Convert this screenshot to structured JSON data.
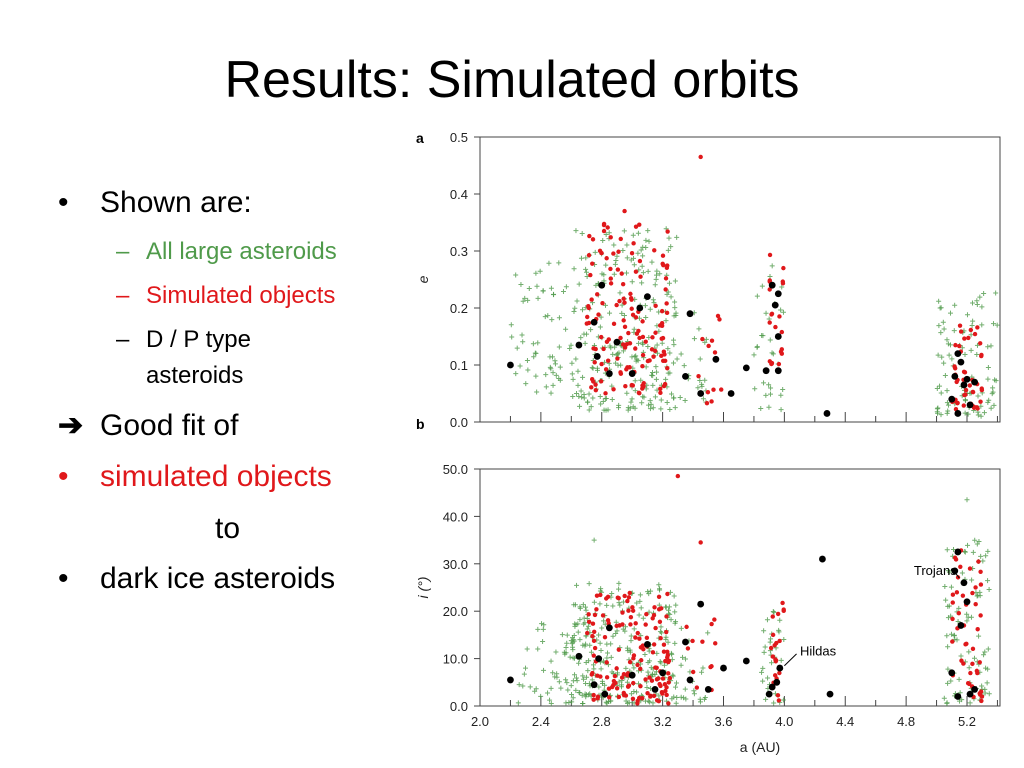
{
  "slide": {
    "title": "Results: Simulated orbits",
    "bullets": {
      "shown": "Shown are:",
      "all_large": "All large asteroids",
      "simulated": "Simulated objects",
      "dp_line1": "D / P type",
      "dp_line2": "asteroids",
      "arrow": "➔",
      "good_fit": "Good fit of",
      "sim_objects": "simulated objects",
      "to": "to",
      "dark_ice": "dark ice asteroids",
      "bullet_char": "•",
      "dash_char": "–"
    }
  },
  "colors": {
    "green": "#4f9a4a",
    "red": "#e0181b",
    "black": "#000000",
    "axis": "#444444"
  },
  "chart_data": [
    {
      "type": "scatter",
      "panel_label": "a",
      "xlabel": "",
      "ylabel": "e",
      "xlim": [
        2.0,
        5.5
      ],
      "ylim": [
        0.0,
        0.5
      ],
      "yticks": [
        "0.0",
        "0.1",
        "0.2",
        "0.3",
        "0.4",
        "0.5"
      ],
      "series": [
        {
          "marker": "cross",
          "color": "#4f9a4a",
          "clusters": [
            [
              2.2,
              2.6,
              0.05,
              0.28,
              60
            ],
            [
              2.6,
              3.3,
              0.02,
              0.34,
              260
            ],
            [
              3.3,
              3.5,
              0.03,
              0.2,
              20
            ],
            [
              3.8,
              4.0,
              0.02,
              0.3,
              30
            ],
            [
              5.0,
              5.4,
              0.01,
              0.24,
              90
            ]
          ]
        },
        {
          "marker": "dot",
          "color": "#e0181b",
          "clusters": [
            [
              2.7,
              3.25,
              0.05,
              0.36,
              140
            ],
            [
              3.4,
              3.6,
              0.03,
              0.2,
              12
            ],
            [
              3.9,
              4.0,
              0.1,
              0.31,
              22
            ],
            [
              5.1,
              5.3,
              0.02,
              0.17,
              45
            ]
          ],
          "points": [
            [
              3.45,
              0.465
            ],
            [
              2.95,
              0.37
            ]
          ]
        },
        {
          "marker": "big-dot",
          "color": "#000000",
          "points": [
            [
              2.2,
              0.1
            ],
            [
              2.65,
              0.135
            ],
            [
              2.75,
              0.175
            ],
            [
              2.77,
              0.115
            ],
            [
              2.8,
              0.24
            ],
            [
              2.85,
              0.085
            ],
            [
              2.9,
              0.14
            ],
            [
              3.0,
              0.085
            ],
            [
              3.05,
              0.2
            ],
            [
              3.1,
              0.22
            ],
            [
              3.35,
              0.08
            ],
            [
              3.38,
              0.19
            ],
            [
              3.45,
              0.05
            ],
            [
              3.55,
              0.11
            ],
            [
              3.65,
              0.05
            ],
            [
              3.75,
              0.095
            ],
            [
              3.88,
              0.09
            ],
            [
              3.92,
              0.24
            ],
            [
              3.94,
              0.205
            ],
            [
              3.96,
              0.15
            ],
            [
              3.96,
              0.225
            ],
            [
              3.96,
              0.09
            ],
            [
              4.28,
              0.015
            ],
            [
              5.1,
              0.04
            ],
            [
              5.12,
              0.08
            ],
            [
              5.14,
              0.12
            ],
            [
              5.16,
              0.105
            ],
            [
              5.18,
              0.065
            ],
            [
              5.2,
              0.075
            ],
            [
              5.22,
              0.03
            ],
            [
              5.25,
              0.07
            ],
            [
              5.14,
              0.015
            ]
          ]
        }
      ]
    },
    {
      "type": "scatter",
      "panel_label": "b",
      "xlabel": "a (AU)",
      "ylabel": "i (°)",
      "xlim": [
        2.0,
        5.5
      ],
      "ylim": [
        0.0,
        55.0
      ],
      "xticks": [
        "2.0",
        "2.4",
        "2.8",
        "3.2",
        "3.6",
        "4.0",
        "4.4",
        "4.8",
        "5.2"
      ],
      "yticks": [
        "0.0",
        "10.0",
        "20.0",
        "30.0",
        "40.0",
        "50.0"
      ],
      "annotations": [
        {
          "text": "Hildas",
          "x": 4.05,
          "y": 11.5
        },
        {
          "text": "Trojans",
          "x": 5.08,
          "y": 28.5
        }
      ],
      "series": [
        {
          "marker": "cross",
          "color": "#4f9a4a",
          "clusters": [
            [
              2.25,
              2.7,
              0.5,
              20,
              60
            ],
            [
              2.6,
              3.3,
              0.5,
              26,
              260
            ],
            [
              3.3,
              3.5,
              0.5,
              20,
              20
            ],
            [
              3.85,
              4.0,
              0.5,
              20,
              30
            ],
            [
              5.05,
              5.35,
              0.5,
              35,
              90
            ]
          ],
          "points": [
            [
              2.75,
              35
            ],
            [
              5.2,
              43.5
            ]
          ]
        },
        {
          "marker": "dot",
          "color": "#e0181b",
          "clusters": [
            [
              2.7,
              3.25,
              0.5,
              24,
              140
            ],
            [
              3.35,
              3.55,
              2,
              19,
              12
            ],
            [
              3.9,
              4.0,
              1,
              23,
              22
            ],
            [
              5.1,
              5.3,
              1,
              35,
              45
            ]
          ],
          "points": [
            [
              3.3,
              48.5
            ],
            [
              5.22,
              55
            ],
            [
              3.45,
              34.5
            ]
          ]
        },
        {
          "marker": "big-dot",
          "color": "#000000",
          "points": [
            [
              2.2,
              5.5
            ],
            [
              2.65,
              10.5
            ],
            [
              2.75,
              4.5
            ],
            [
              2.78,
              10
            ],
            [
              2.85,
              16.5
            ],
            [
              2.82,
              2.5
            ],
            [
              3.0,
              6.5
            ],
            [
              3.1,
              13
            ],
            [
              3.15,
              3.5
            ],
            [
              3.2,
              7
            ],
            [
              3.35,
              13.5
            ],
            [
              3.38,
              5.5
            ],
            [
              3.45,
              21.5
            ],
            [
              3.5,
              3.5
            ],
            [
              3.6,
              8
            ],
            [
              3.75,
              9.5
            ],
            [
              3.9,
              2.5
            ],
            [
              3.92,
              4
            ],
            [
              3.95,
              5
            ],
            [
              3.97,
              8
            ],
            [
              4.25,
              31
            ],
            [
              4.3,
              2.5
            ],
            [
              5.1,
              7
            ],
            [
              5.12,
              28.5
            ],
            [
              5.14,
              32.5
            ],
            [
              5.16,
              17
            ],
            [
              5.18,
              26
            ],
            [
              5.2,
              22
            ],
            [
              5.22,
              2.5
            ],
            [
              5.25,
              3.5
            ],
            [
              5.14,
              2
            ]
          ]
        }
      ]
    }
  ]
}
